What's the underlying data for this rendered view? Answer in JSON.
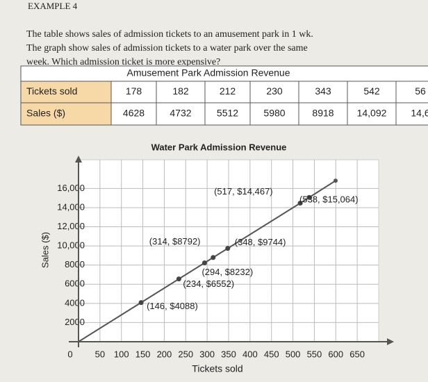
{
  "header": {
    "label": "EXAMPLE 4",
    "lines": [
      "The table shows sales of admission tickets to an amusement park in 1 wk.",
      "The graph show sales of admission tickets to a water park over the same",
      "week. Which admission ticket is more expensive?"
    ]
  },
  "table": {
    "title": "Amusement Park Admission Revenue",
    "rows": [
      [
        "Tickets sold",
        "178",
        "182",
        "212",
        "230",
        "343",
        "542",
        "56"
      ],
      [
        "Sales ($)",
        "4628",
        "4732",
        "5512",
        "5980",
        "8918",
        "14,092",
        "14,6"
      ]
    ]
  },
  "chart_data": {
    "type": "scatter",
    "title": "Water Park Admission Revenue",
    "x_label": "Tickets sold",
    "y_label": "Sales ($)",
    "x": [
      146,
      234,
      294,
      314,
      348,
      517,
      538
    ],
    "values": [
      4088,
      6552,
      8232,
      8792,
      9744,
      14467,
      15064
    ],
    "value_labels": [
      "(146, $4088)",
      "(234, $6552)",
      "(294, $8232)",
      "(314, $8792)",
      "(348, $9744)",
      "(517, $14,467)",
      "(538, $15,064)"
    ],
    "color": "#444444",
    "xlim": [
      0,
      700
    ],
    "ylim": [
      0,
      19000
    ],
    "xticks": [
      0,
      50,
      100,
      150,
      200,
      250,
      300,
      350,
      400,
      450,
      500,
      550,
      600,
      650
    ],
    "yticks": [
      2000,
      4000,
      6000,
      8000,
      {
        "value": 10000,
        "label": "10,000"
      },
      {
        "value": 12000,
        "label": "12,000"
      },
      {
        "value": 14000,
        "label": "14,000"
      },
      {
        "value": 16000,
        "label": "16,000"
      }
    ],
    "grid": true
  }
}
